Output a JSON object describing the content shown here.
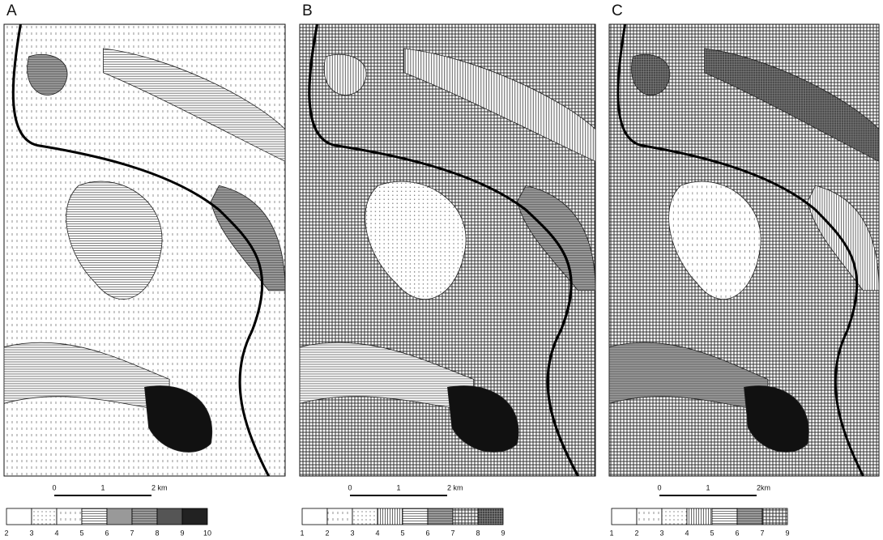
{
  "panels": [
    {
      "label": "A",
      "scale": [
        "0",
        "1",
        "2 km"
      ],
      "legend": [
        "2",
        "3",
        "4",
        "5",
        "6",
        "7",
        "8",
        "9",
        "10"
      ]
    },
    {
      "label": "B",
      "scale": [
        "0",
        "1",
        "2 km"
      ],
      "legend": [
        "1",
        "2",
        "3",
        "4",
        "5",
        "6",
        "7",
        "8",
        "9"
      ]
    },
    {
      "label": "C",
      "scale": [
        "0",
        "1",
        "2km"
      ],
      "legend": [
        "1",
        "2",
        "3",
        "4",
        "5",
        "6",
        "7",
        "9"
      ]
    }
  ]
}
